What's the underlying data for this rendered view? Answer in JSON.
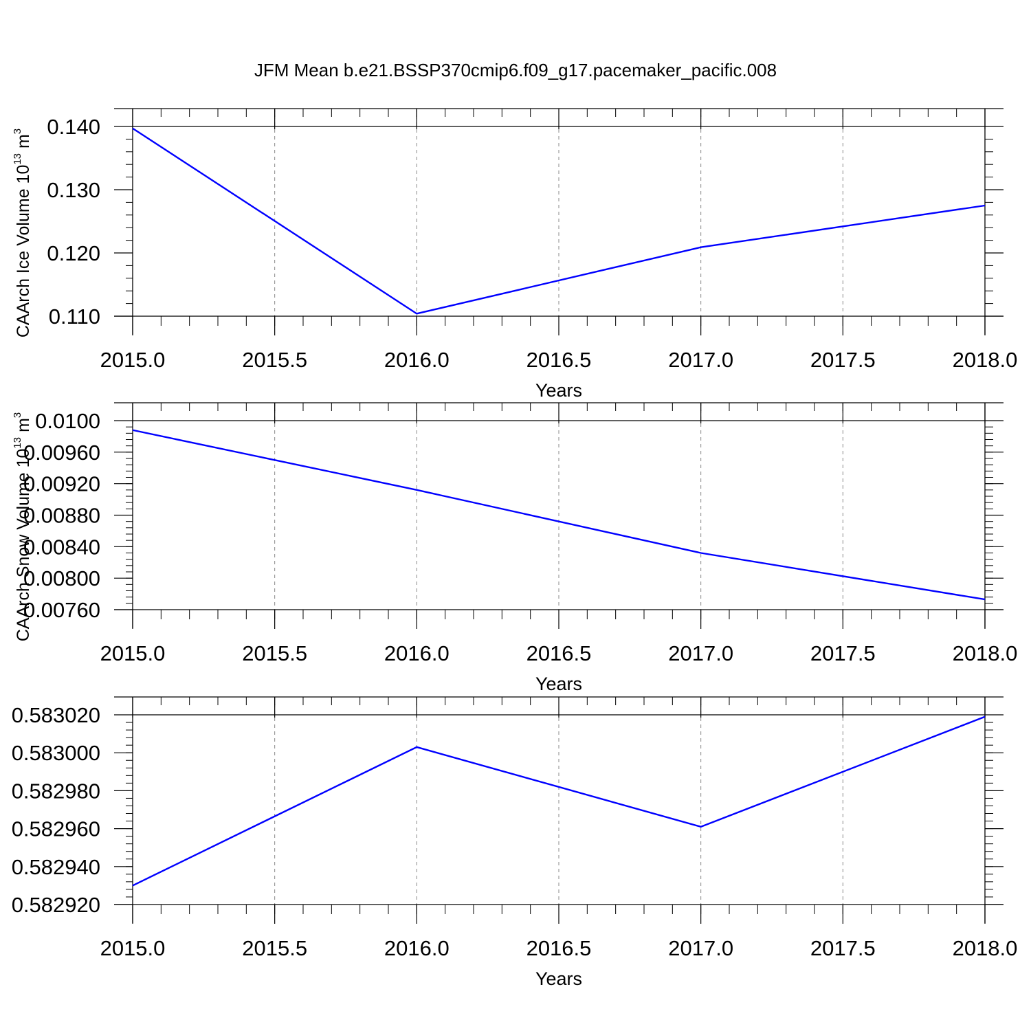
{
  "figure": {
    "title": "JFM Mean b.e21.BSSP370cmip6.f09_g17.pacemaker_pacific.008"
  },
  "colors": {
    "line": "#0000ff",
    "axis": "#000000",
    "grid": "#888888",
    "background": "#ffffff"
  },
  "chart_data": [
    {
      "type": "line",
      "title": "JFM Mean b.e21.BSSP370cmip6.f09_g17.pacemaker_pacific.008",
      "xlabel": "Years",
      "ylabel": "CAArch Ice Volume 10",
      "ylabel_superscript": "13",
      "ylabel_unit": "m",
      "ylabel_unit_superscript": "3",
      "x": [
        2015,
        2016,
        2017,
        2018
      ],
      "series": [
        {
          "values": [
            0.1397,
            0.1104,
            0.1209,
            0.1275
          ]
        }
      ],
      "xlim": [
        2015.0,
        2018.0
      ],
      "ylim": [
        0.11,
        0.14
      ],
      "x_ticks": [
        "2015.0",
        "2015.5",
        "2016.0",
        "2016.5",
        "2017.0",
        "2017.5",
        "2018.0"
      ],
      "y_ticks": [
        "0.110",
        "0.120",
        "0.130",
        "0.140"
      ],
      "y_tick_values": [
        0.11,
        0.12,
        0.13,
        0.14
      ],
      "grid": "vertical dashed"
    },
    {
      "type": "line",
      "xlabel": "Years",
      "ylabel": "CAArch Snow Volume 10",
      "ylabel_superscript": "13",
      "ylabel_unit": "m",
      "ylabel_unit_superscript": "3",
      "x": [
        2015,
        2016,
        2017,
        2018
      ],
      "series": [
        {
          "values": [
            0.00988,
            0.00912,
            0.00832,
            0.00773
          ]
        }
      ],
      "xlim": [
        2015.0,
        2018.0
      ],
      "ylim": [
        0.0076,
        0.01
      ],
      "x_ticks": [
        "2015.0",
        "2015.5",
        "2016.0",
        "2016.5",
        "2017.0",
        "2017.5",
        "2018.0"
      ],
      "y_ticks": [
        "0.00760",
        "0.00800",
        "0.00840",
        "0.00880",
        "0.00920",
        "0.00960",
        "0.0100"
      ],
      "y_tick_values": [
        0.0076,
        0.008,
        0.0084,
        0.0088,
        0.0092,
        0.0096,
        0.01
      ],
      "grid": "vertical dashed"
    },
    {
      "type": "line",
      "xlabel": "Years",
      "ylabel": "",
      "x": [
        2015,
        2016,
        2017,
        2018
      ],
      "series": [
        {
          "values": [
            0.58293,
            0.583003,
            0.582961,
            0.583019
          ]
        }
      ],
      "xlim": [
        2015.0,
        2018.0
      ],
      "ylim": [
        0.58292,
        0.58302
      ],
      "x_ticks": [
        "2015.0",
        "2015.5",
        "2016.0",
        "2016.5",
        "2017.0",
        "2017.5",
        "2018.0"
      ],
      "y_ticks": [
        "0.582920",
        "0.582940",
        "0.582960",
        "0.582980",
        "0.583000",
        "0.583020"
      ],
      "y_tick_values": [
        0.58292,
        0.58294,
        0.58296,
        0.58298,
        0.583,
        0.58302
      ],
      "grid": "vertical dashed"
    }
  ]
}
